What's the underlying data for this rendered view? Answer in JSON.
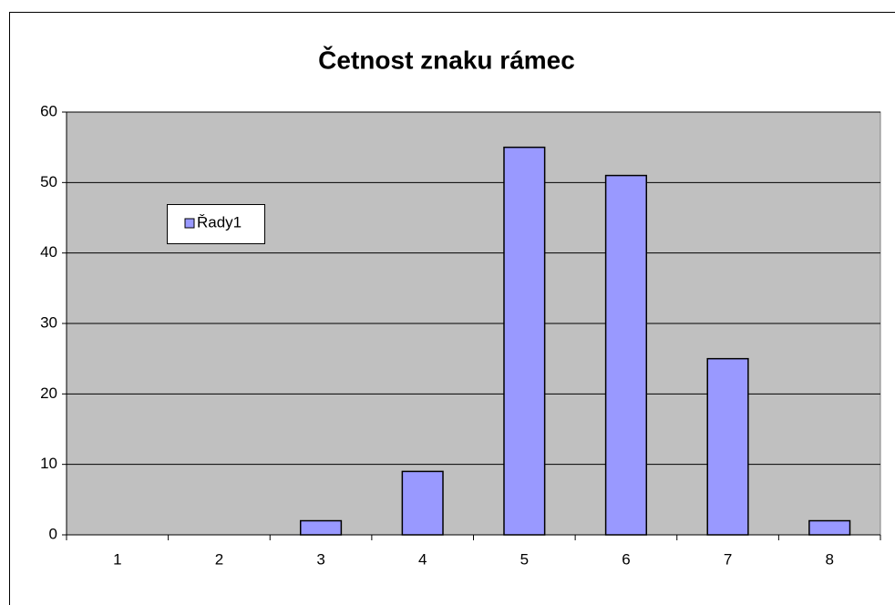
{
  "chart_data": {
    "type": "bar",
    "title": "Četnost znaku rámec",
    "categories": [
      "1",
      "2",
      "3",
      "4",
      "5",
      "6",
      "7",
      "8"
    ],
    "series": [
      {
        "name": "Řady1",
        "color": "#9999ff",
        "values": [
          0,
          0,
          2,
          9,
          55,
          51,
          25,
          2
        ]
      }
    ],
    "ylim": [
      0,
      60
    ],
    "yticks": [
      0,
      10,
      20,
      30,
      40,
      50,
      60
    ],
    "grid": true,
    "legend": "left"
  }
}
